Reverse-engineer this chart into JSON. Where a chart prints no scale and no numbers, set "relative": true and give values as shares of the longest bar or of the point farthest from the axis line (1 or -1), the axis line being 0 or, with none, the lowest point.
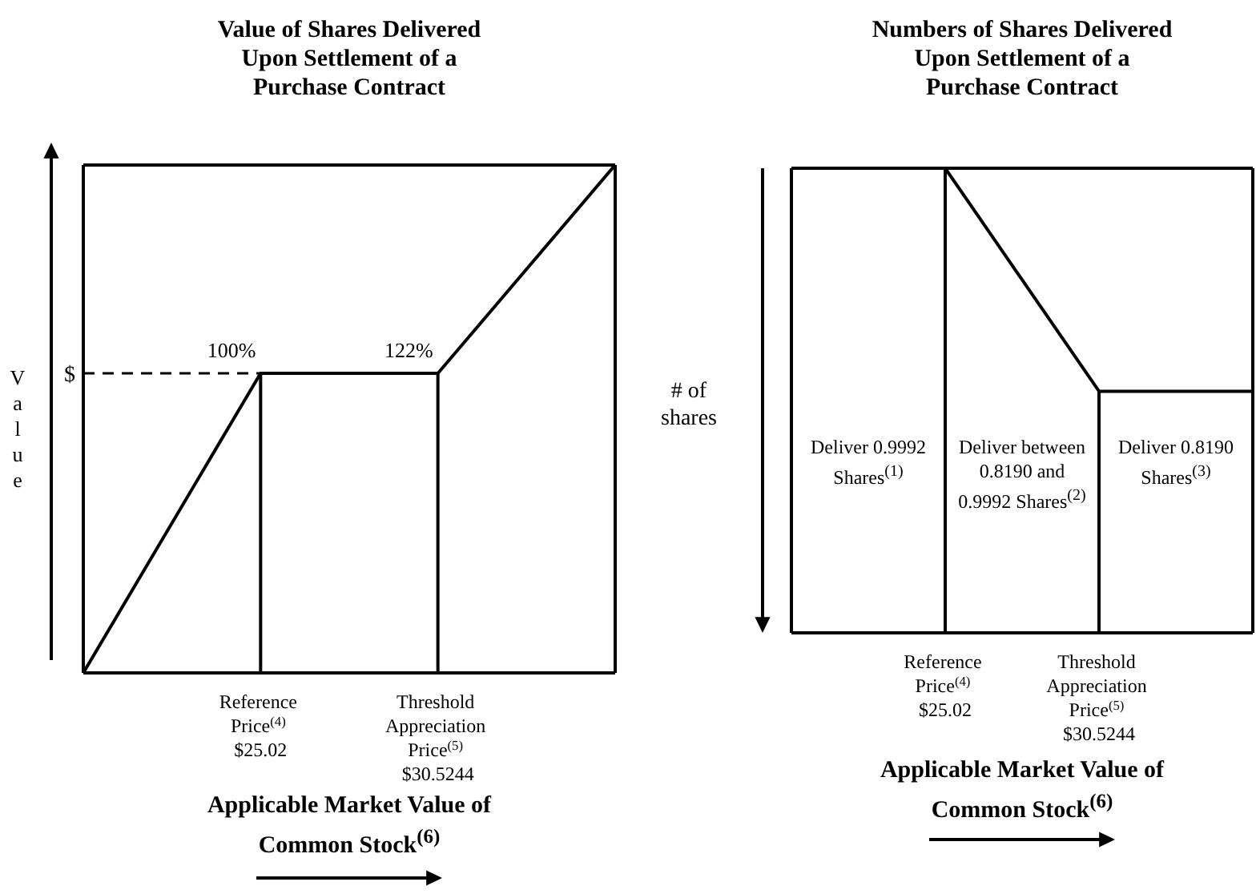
{
  "chart_data": [
    {
      "type": "line",
      "title": "Value of Shares Delivered\nUpon Settlement of a\nPurchase Contract",
      "xlabel": "Applicable Market Value of\nCommon Stock$^{(6)}$",
      "ylabel": "Value",
      "relative": true,
      "categories": [
        null,
        "Reference Price$^{(4)}$ $25.02",
        "Threshold Appreciation Price$^{(5)}$ $30.5244",
        null
      ],
      "series": [
        {
          "color": "#000000",
          "values": [
            0,
            0.59,
            0.59,
            1
          ]
        }
      ],
      "ref_lines": [
        {
          "axis": "x",
          "value": "Reference Price$^{(4)}$ $25.02"
        },
        {
          "axis": "x",
          "value": "Threshold Appreciation Price$^{(5)}$ $30.5244"
        },
        {
          "axis": "y",
          "value": 0.59,
          "label": "$",
          "line_style": "dashed"
        }
      ],
      "annotations": [
        {
          "text": "100%",
          "x": "Reference Price$^{(4)}$ $25.02",
          "y": 0.59
        },
        {
          "text": "122%",
          "x": "Threshold Appreciation Price$^{(5)}$ $30.5244",
          "y": 0.59
        }
      ]
    },
    {
      "type": "line",
      "title": "Numbers of Shares Delivered\nUpon Settlement of a\nPurchase Contract",
      "xlabel": "Applicable Market Value of\nCommon Stock$^{(6)}$",
      "ylabel": "# of shares",
      "relative": true,
      "categories": [
        null,
        "Reference Price$^{(4)}$ $25.02",
        "Threshold Appreciation Price$^{(5)}$ $30.5244",
        null
      ],
      "series": [
        {
          "color": "#000000",
          "values": [
            1,
            1,
            0.52,
            0.52
          ]
        }
      ],
      "ref_lines": [
        {
          "axis": "x",
          "value": "Reference Price$^{(4)}$ $25.02"
        },
        {
          "axis": "x",
          "value": "Threshold Appreciation Price$^{(5)}$ $30.5244"
        }
      ],
      "annotations": [
        "Deliver 0.9992 Shares$^{(1)}$",
        "Deliver between 0.8190 and 0.9992 Shares$^{(2)}$",
        "Deliver 0.8190 Shares$^{(3)}$"
      ]
    }
  ]
}
